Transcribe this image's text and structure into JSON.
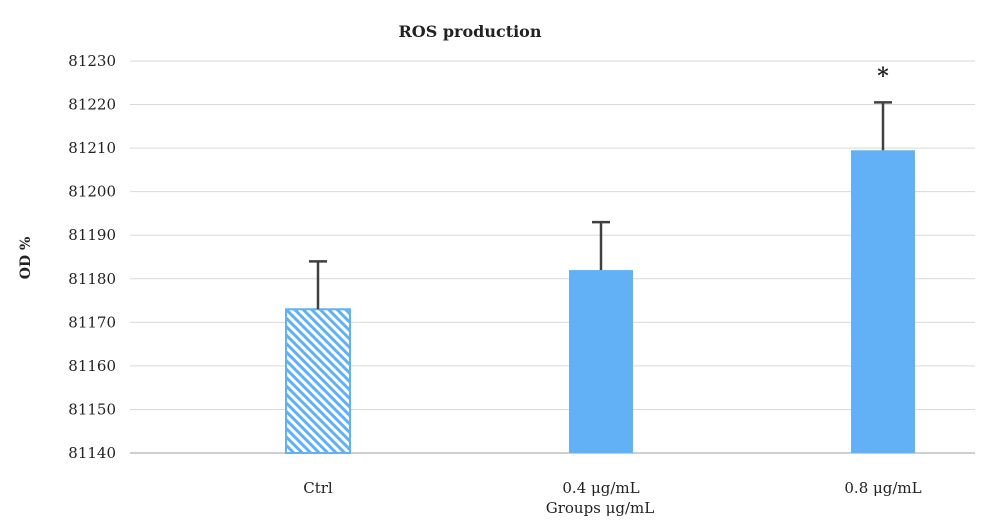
{
  "chart_data": {
    "type": "bar",
    "title": "ROS production",
    "xlabel": "Groups μg/mL",
    "ylabel": "OD %",
    "categories": [
      "Ctrl",
      "0.4 μg/mL",
      "0.8 μg/mL"
    ],
    "values": [
      81173,
      81182,
      81209.5
    ],
    "error_upper": [
      11,
      11,
      11
    ],
    "annotations": [
      "",
      "",
      "*"
    ],
    "bar_styles": [
      "hatched",
      "solid",
      "solid"
    ],
    "ylim": [
      81140,
      81230
    ],
    "yticks": [
      81140,
      81150,
      81160,
      81170,
      81180,
      81190,
      81200,
      81210,
      81220,
      81230
    ],
    "grid": true,
    "legend": "none",
    "colors": {
      "bar": "#62b0f5",
      "error_bar": "#404040",
      "grid": "#d9d9d9",
      "axis": "#bfbfbf"
    }
  }
}
